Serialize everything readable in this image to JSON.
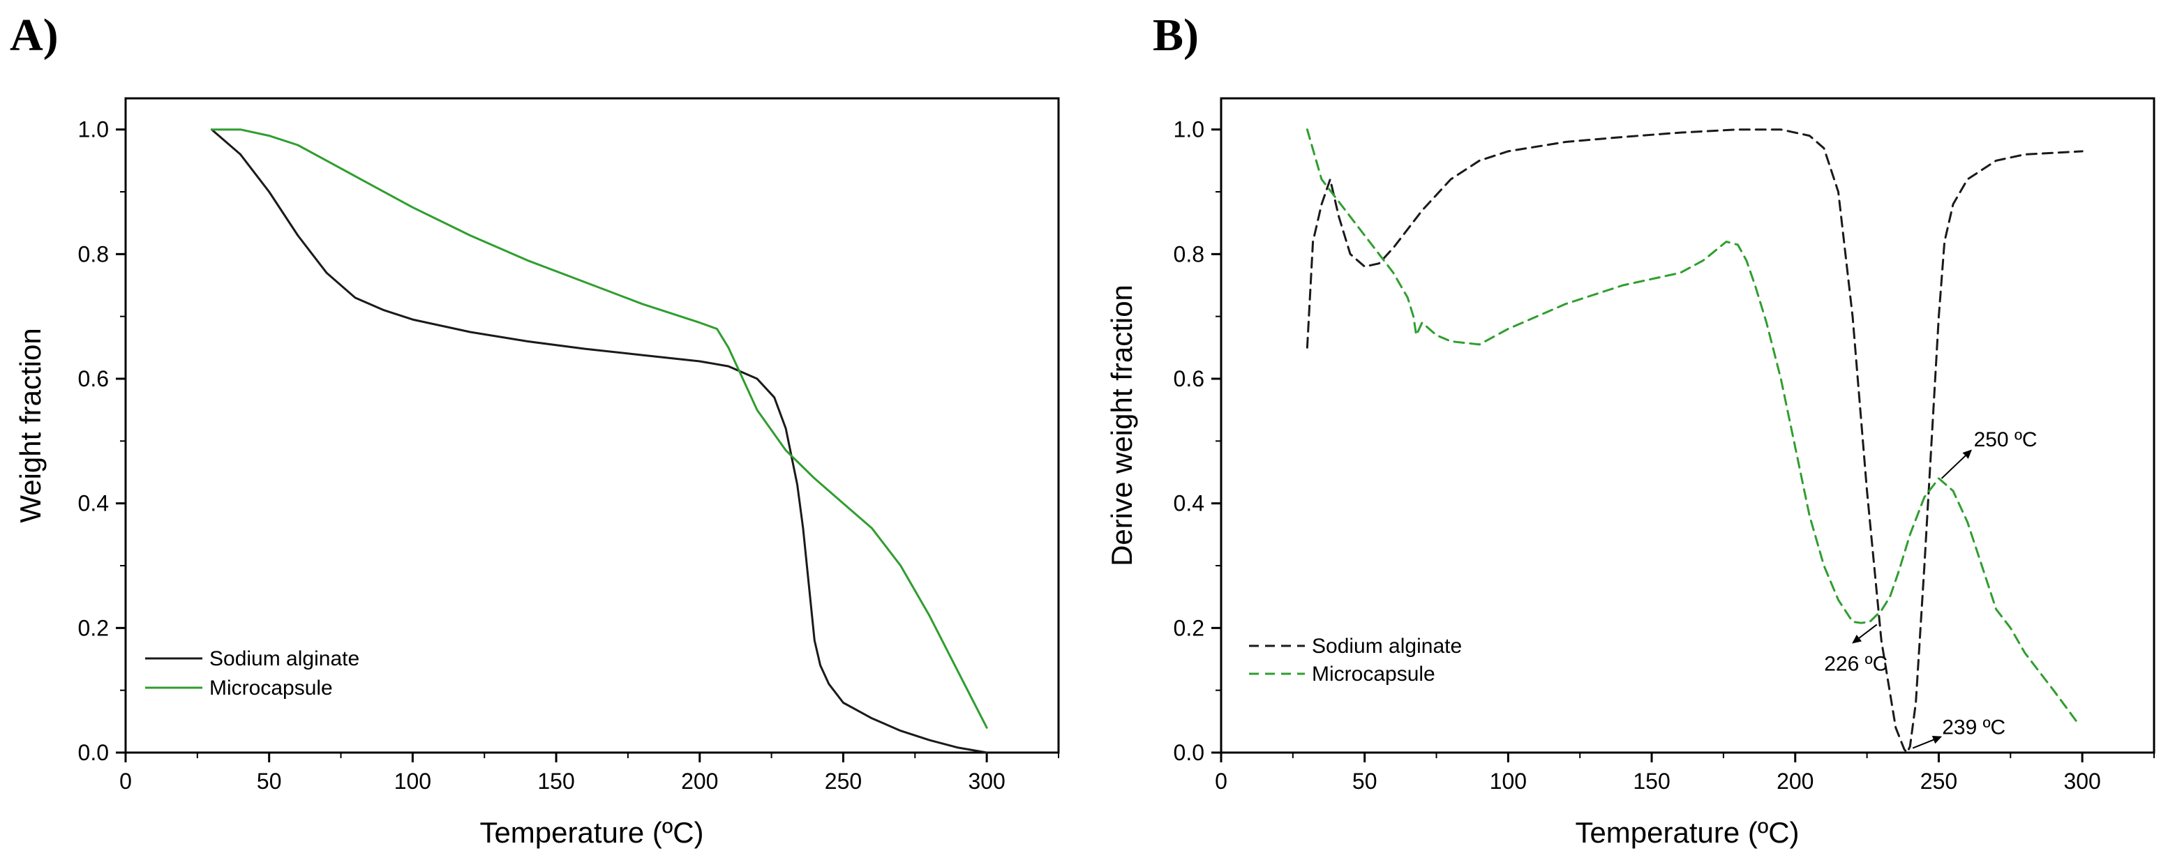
{
  "colors": {
    "sodium": "#1a1a1a",
    "micro": "#2f9e2f"
  },
  "chart_data": [
    {
      "panel": "A)",
      "type": "line",
      "xlabel": "Temperature (ºC)",
      "ylabel": "Weight fraction",
      "xlim": [
        0,
        325
      ],
      "ylim": [
        0,
        1.05
      ],
      "xticks": [
        0,
        50,
        100,
        150,
        200,
        250,
        300
      ],
      "yticks": [
        0.0,
        0.2,
        0.4,
        0.6,
        0.8,
        1.0
      ],
      "xtick_labels": [
        "0",
        "50",
        "100",
        "150",
        "200",
        "250",
        "300"
      ],
      "ytick_labels": [
        "0.0",
        "0.2",
        "0.4",
        "0.6",
        "0.8",
        "1.0"
      ],
      "legend_position": "bottom-left",
      "series": [
        {
          "name": "Sodium alginate",
          "style": "solid",
          "color_key": "sodium",
          "x": [
            30,
            40,
            50,
            60,
            70,
            80,
            90,
            100,
            120,
            140,
            160,
            180,
            200,
            210,
            220,
            226,
            230,
            234,
            236,
            238,
            240,
            242,
            245,
            250,
            260,
            270,
            280,
            290,
            300
          ],
          "y": [
            1.0,
            0.96,
            0.9,
            0.83,
            0.77,
            0.73,
            0.71,
            0.695,
            0.675,
            0.66,
            0.648,
            0.638,
            0.628,
            0.62,
            0.6,
            0.57,
            0.52,
            0.43,
            0.36,
            0.27,
            0.18,
            0.14,
            0.11,
            0.08,
            0.055,
            0.035,
            0.02,
            0.008,
            0.0
          ]
        },
        {
          "name": "Microcapsule",
          "style": "solid",
          "color_key": "micro",
          "x": [
            30,
            40,
            50,
            60,
            70,
            80,
            100,
            120,
            140,
            160,
            180,
            200,
            206,
            210,
            215,
            220,
            230,
            240,
            250,
            260,
            270,
            280,
            290,
            300
          ],
          "y": [
            1.0,
            1.0,
            0.99,
            0.975,
            0.95,
            0.925,
            0.875,
            0.83,
            0.79,
            0.755,
            0.72,
            0.69,
            0.68,
            0.65,
            0.6,
            0.55,
            0.485,
            0.44,
            0.4,
            0.36,
            0.3,
            0.22,
            0.13,
            0.04
          ]
        }
      ]
    },
    {
      "panel": "B)",
      "type": "line",
      "xlabel": "Temperature (ºC)",
      "ylabel": "Derive weight fraction",
      "xlim": [
        0,
        325
      ],
      "ylim": [
        0,
        1.05
      ],
      "xticks": [
        0,
        50,
        100,
        150,
        200,
        250,
        300
      ],
      "yticks": [
        0.0,
        0.2,
        0.4,
        0.6,
        0.8,
        1.0
      ],
      "xtick_labels": [
        "0",
        "50",
        "100",
        "150",
        "200",
        "250",
        "300"
      ],
      "ytick_labels": [
        "0.0",
        "0.2",
        "0.4",
        "0.6",
        "0.8",
        "1.0"
      ],
      "legend_position": "bottom-left",
      "series": [
        {
          "name": "Sodium alginate",
          "style": "dashed",
          "color_key": "sodium",
          "x": [
            30,
            32,
            35,
            38,
            41,
            45,
            50,
            55,
            60,
            70,
            80,
            90,
            100,
            120,
            140,
            160,
            180,
            195,
            205,
            210,
            215,
            220,
            225,
            230,
            235,
            238,
            239,
            240,
            242,
            245,
            250,
            252,
            255,
            260,
            270,
            280,
            300
          ],
          "y": [
            0.65,
            0.82,
            0.88,
            0.92,
            0.86,
            0.8,
            0.78,
            0.785,
            0.81,
            0.87,
            0.92,
            0.95,
            0.965,
            0.98,
            0.988,
            0.995,
            1.0,
            1.0,
            0.99,
            0.97,
            0.9,
            0.7,
            0.42,
            0.18,
            0.04,
            0.005,
            0.0,
            0.01,
            0.08,
            0.3,
            0.7,
            0.82,
            0.88,
            0.92,
            0.95,
            0.96,
            0.965
          ]
        },
        {
          "name": "Microcapsule",
          "style": "dashed",
          "color_key": "micro",
          "x": [
            30,
            35,
            40,
            45,
            50,
            55,
            60,
            65,
            67,
            68,
            70,
            75,
            80,
            90,
            100,
            120,
            140,
            160,
            168,
            172,
            176,
            180,
            183,
            186,
            190,
            195,
            200,
            205,
            210,
            215,
            220,
            223,
            226,
            230,
            233,
            236,
            240,
            245,
            250,
            255,
            260,
            265,
            270,
            275,
            280,
            285,
            290,
            298
          ],
          "y": [
            1.0,
            0.92,
            0.89,
            0.86,
            0.83,
            0.8,
            0.77,
            0.73,
            0.7,
            0.67,
            0.69,
            0.67,
            0.66,
            0.655,
            0.68,
            0.72,
            0.75,
            0.77,
            0.79,
            0.805,
            0.82,
            0.815,
            0.79,
            0.75,
            0.69,
            0.6,
            0.49,
            0.38,
            0.3,
            0.245,
            0.21,
            0.208,
            0.21,
            0.228,
            0.25,
            0.29,
            0.35,
            0.41,
            0.44,
            0.42,
            0.37,
            0.3,
            0.23,
            0.2,
            0.16,
            0.13,
            0.1,
            0.05
          ]
        }
      ],
      "annotations": [
        {
          "text": "250 ºC",
          "point": [
            251,
            0.44
          ],
          "direction": "up-right"
        },
        {
          "text": "226 ºC",
          "point": [
            226,
            0.21
          ],
          "direction": "down-left"
        },
        {
          "text": "239 ºC",
          "point": [
            239,
            0.005
          ],
          "direction": "right"
        }
      ]
    }
  ]
}
